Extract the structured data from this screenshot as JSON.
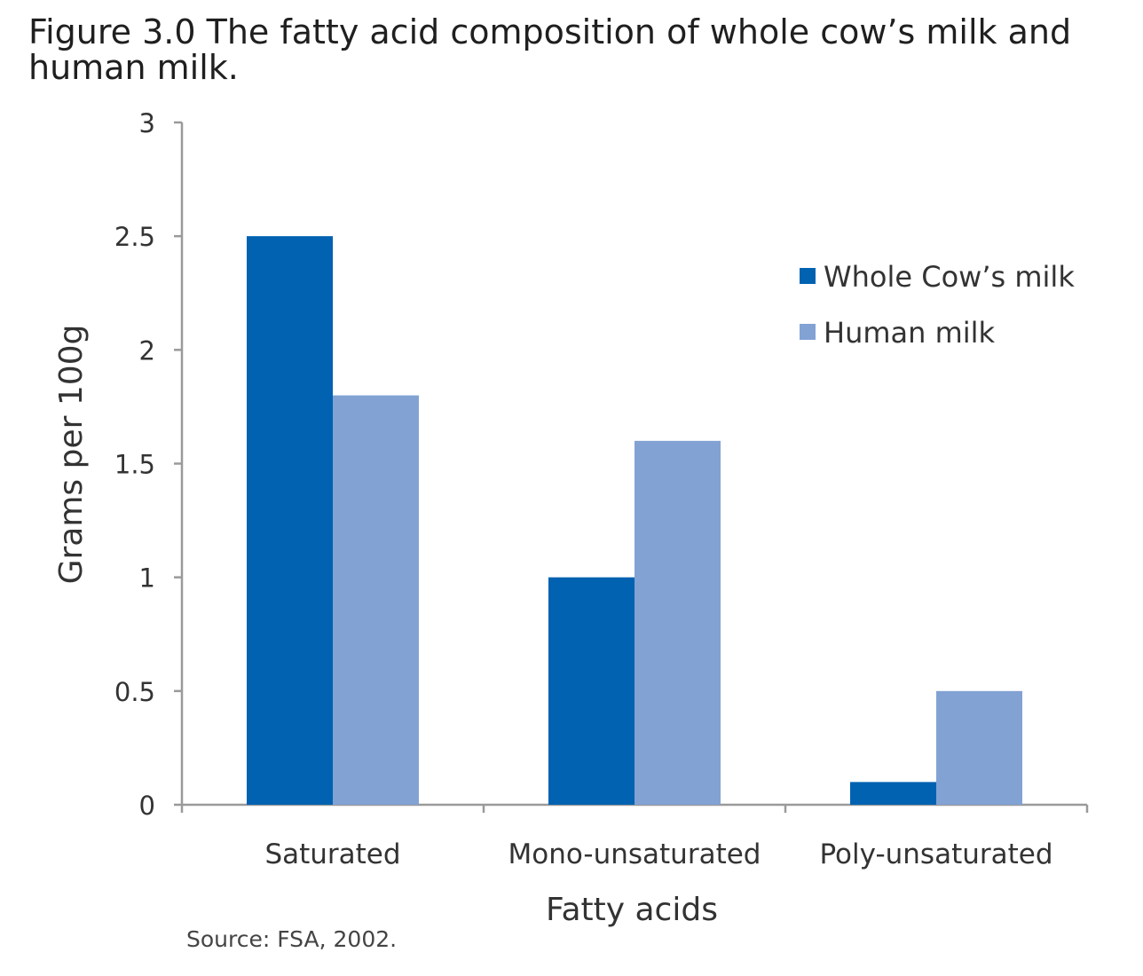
{
  "figure": {
    "title": "Figure 3.0 The fatty acid composition of whole cow’s milk and human milk.",
    "source": "Source: FSA, 2002."
  },
  "colors": {
    "whole_cow": "#0062b1",
    "human": "#82a2d4",
    "axis": "#9a9a9a"
  },
  "chart_data": {
    "type": "bar",
    "categories": [
      "Saturated",
      "Mono-unsaturated",
      "Poly-unsaturated"
    ],
    "series": [
      {
        "name": "Whole Cow’s milk",
        "values": [
          2.5,
          1.0,
          0.1
        ]
      },
      {
        "name": "Human milk",
        "values": [
          1.8,
          1.6,
          0.5
        ]
      }
    ],
    "xlabel": "Fatty acids",
    "ylabel": "Grams per 100g",
    "ylim": [
      0,
      3
    ],
    "yticks": [
      0,
      0.5,
      1,
      1.5,
      2,
      2.5,
      3
    ],
    "grid": false,
    "legend_position": "top-right"
  }
}
